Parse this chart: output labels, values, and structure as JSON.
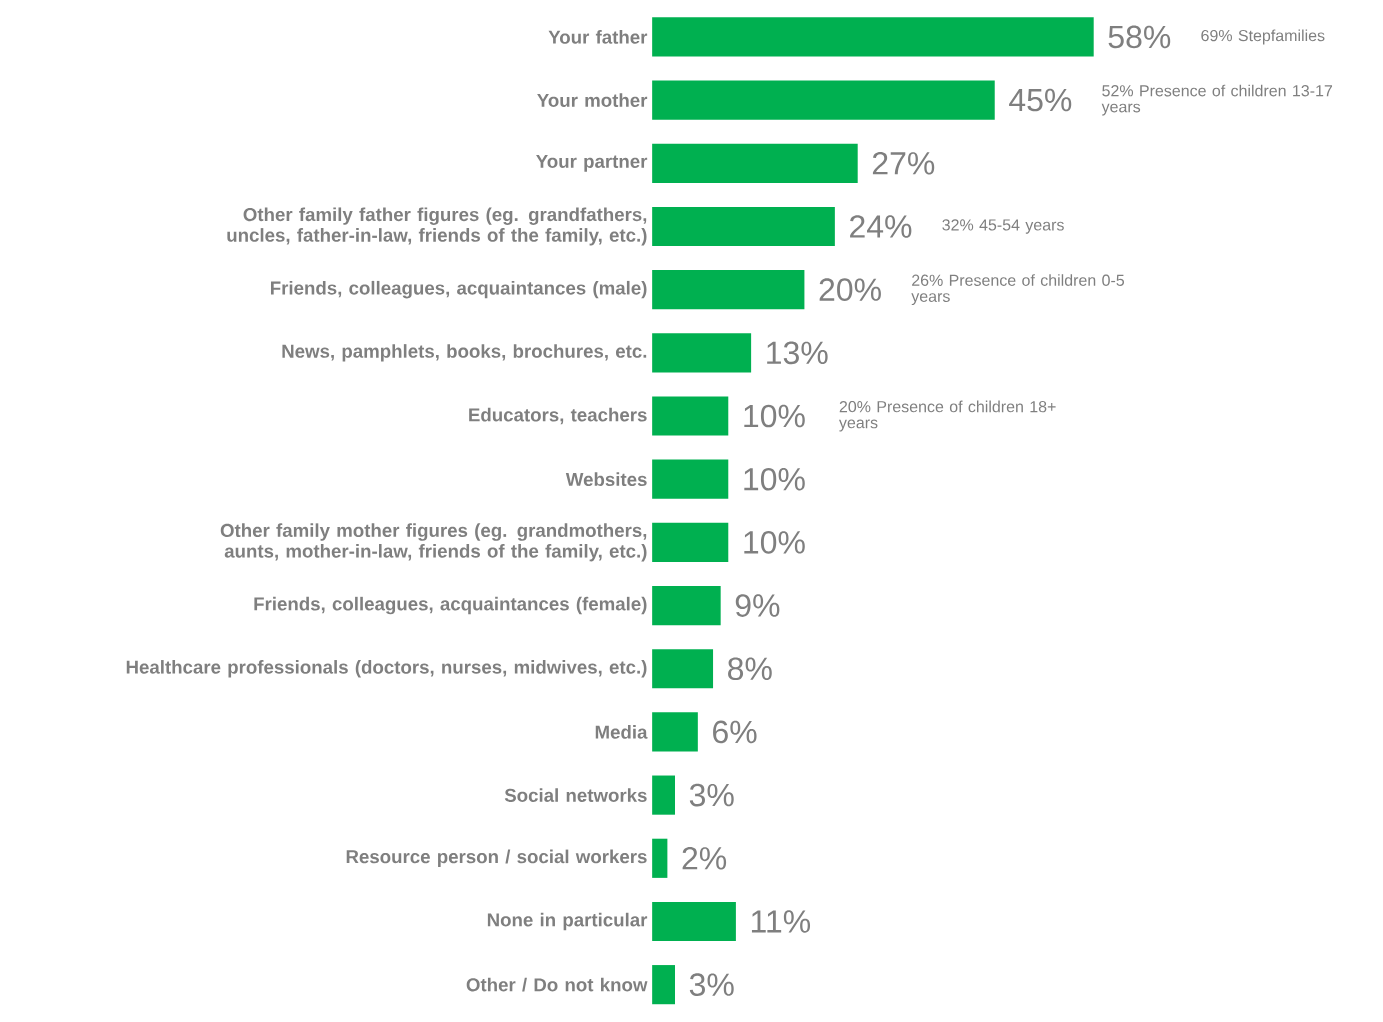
{
  "chart_data": {
    "type": "bar",
    "orientation": "horizontal",
    "categories": [
      "Your father",
      "Your mother",
      "Your partner",
      "Other family father figures (eg. grandfathers, uncles, father-in-law, friends of the family, etc.)",
      "Friends, colleagues, acquaintances (male)",
      "News, pamphlets, books, brochures, etc.",
      "Educators, teachers",
      "Websites",
      "Other family mother figures (eg. grandmothers, aunts, mother-in-law, friends of the family, etc.)",
      "Friends, colleagues, acquaintances (female)",
      "Healthcare professionals (doctors, nurses, midwives, etc.)",
      "Media",
      "Social networks",
      "Resource person / social workers",
      "None in particular",
      "Other / Do not know"
    ],
    "values": [
      58,
      45,
      27,
      24,
      20,
      13,
      10,
      10,
      10,
      9,
      8,
      6,
      3,
      2,
      11,
      3
    ],
    "value_labels": [
      "58%",
      "45%",
      "27%",
      "24%",
      "20%",
      "13%",
      "10%",
      "10%",
      "10%",
      "9%",
      "8%",
      "6%",
      "3%",
      "2%",
      "11%",
      "3%"
    ],
    "color": "#00b050",
    "annotations": [
      "69% Stepfamilies",
      "52% Presence of children 13-17 years",
      "32% 45-54 years",
      "26% Presence of children 0-5 years",
      "20% Presence of children 18+ years"
    ]
  }
}
